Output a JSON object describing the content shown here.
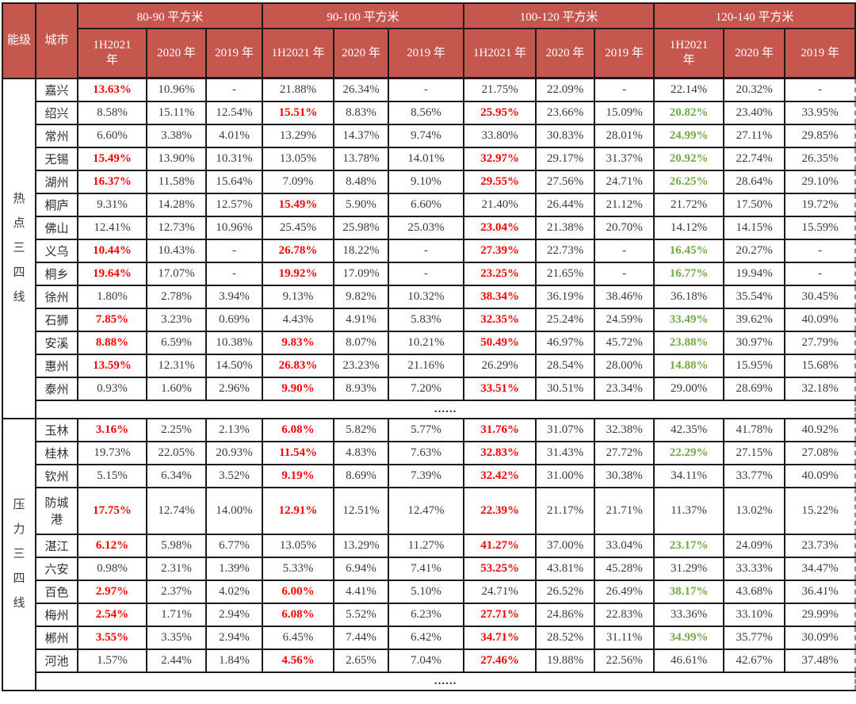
{
  "colors": {
    "header_bg": "#c5574f",
    "header_text": "#ffffff",
    "highlight_red": "#fe0000",
    "highlight_green": "#6fac47",
    "body_text": "#3a3a3a",
    "border": "#1b1b1b"
  },
  "chart_data": {
    "type": "table",
    "corner_headers": [
      "能级",
      "城市"
    ],
    "column_groups": [
      {
        "label": "80-90 平方米",
        "sub": [
          "1H2021\n年",
          "2020 年",
          "2019 年"
        ]
      },
      {
        "label": "90-100 平方米",
        "sub": [
          "1H2021 年",
          "2020 年",
          "2019 年"
        ]
      },
      {
        "label": "100-120 平方米",
        "sub": [
          "1H2021 年",
          "2020 年",
          "2019 年"
        ]
      },
      {
        "label": "120-140 平方米",
        "sub": [
          "1H2021\n年",
          "2020 年",
          "2019 年"
        ]
      }
    ],
    "sections": [
      {
        "label": "热点三四线",
        "ellipsis": "......",
        "rows": [
          {
            "city": "嘉兴",
            "values": [
              {
                "v": "13.63%",
                "c": "r"
              },
              "10.96%",
              "-",
              "21.88%",
              "26.34%",
              "-",
              "21.75%",
              "22.09%",
              "-",
              "22.14%",
              "20.32%",
              "-"
            ]
          },
          {
            "city": "绍兴",
            "values": [
              "8.58%",
              "15.11%",
              "12.54%",
              {
                "v": "15.51%",
                "c": "r"
              },
              "8.83%",
              "8.56%",
              {
                "v": "25.95%",
                "c": "r"
              },
              "23.66%",
              "15.09%",
              {
                "v": "20.82%",
                "c": "g"
              },
              "23.40%",
              "33.95%"
            ]
          },
          {
            "city": "常州",
            "values": [
              "6.60%",
              "3.38%",
              "4.01%",
              "13.29%",
              "14.37%",
              "9.74%",
              "33.80%",
              "30.83%",
              "28.01%",
              {
                "v": "24.99%",
                "c": "g"
              },
              "27.11%",
              "29.85%"
            ]
          },
          {
            "city": "无锡",
            "values": [
              {
                "v": "15.49%",
                "c": "r"
              },
              "13.90%",
              "10.31%",
              "13.05%",
              "13.78%",
              "14.01%",
              {
                "v": "32.97%",
                "c": "r"
              },
              "29.17%",
              "31.37%",
              {
                "v": "20.92%",
                "c": "g"
              },
              "22.74%",
              "26.35%"
            ]
          },
          {
            "city": "湖州",
            "values": [
              {
                "v": "16.37%",
                "c": "r"
              },
              "11.58%",
              "15.64%",
              "7.09%",
              "8.48%",
              "9.10%",
              {
                "v": "29.55%",
                "c": "r"
              },
              "27.56%",
              "24.71%",
              {
                "v": "26.25%",
                "c": "g"
              },
              "28.64%",
              "29.10%"
            ]
          },
          {
            "city": "桐庐",
            "values": [
              "9.31%",
              "14.28%",
              "12.57%",
              {
                "v": "15.49%",
                "c": "r"
              },
              "5.90%",
              "6.60%",
              "21.40%",
              "26.44%",
              "21.12%",
              "21.72%",
              "17.50%",
              "19.72%"
            ]
          },
          {
            "city": "佛山",
            "values": [
              "12.41%",
              "12.73%",
              "10.96%",
              "25.45%",
              "25.98%",
              "25.03%",
              {
                "v": "23.04%",
                "c": "r"
              },
              "21.38%",
              "20.70%",
              "14.12%",
              "14.15%",
              "15.59%"
            ]
          },
          {
            "city": "义乌",
            "values": [
              {
                "v": "10.44%",
                "c": "r"
              },
              "10.43%",
              "-",
              {
                "v": "26.78%",
                "c": "r"
              },
              "18.22%",
              "-",
              {
                "v": "27.39%",
                "c": "r"
              },
              "22.73%",
              "-",
              {
                "v": "16.45%",
                "c": "g"
              },
              "20.27%",
              "-"
            ]
          },
          {
            "city": "桐乡",
            "values": [
              {
                "v": "19.64%",
                "c": "r"
              },
              "17.07%",
              "-",
              {
                "v": "19.92%",
                "c": "r"
              },
              "17.09%",
              "-",
              {
                "v": "23.25%",
                "c": "r"
              },
              "21.65%",
              "-",
              {
                "v": "16.77%",
                "c": "g"
              },
              "19.94%",
              "-"
            ]
          },
          {
            "city": "徐州",
            "values": [
              "1.80%",
              "2.78%",
              "3.94%",
              "9.13%",
              "9.82%",
              "10.32%",
              {
                "v": "38.34%",
                "c": "r"
              },
              "36.19%",
              "38.46%",
              "36.18%",
              "35.54%",
              "30.45%"
            ]
          },
          {
            "city": "石狮",
            "values": [
              {
                "v": "7.85%",
                "c": "r"
              },
              "3.23%",
              "0.69%",
              "4.43%",
              "4.91%",
              "5.83%",
              {
                "v": "32.35%",
                "c": "r"
              },
              "25.24%",
              "24.59%",
              {
                "v": "33.49%",
                "c": "g"
              },
              "39.62%",
              "40.09%"
            ]
          },
          {
            "city": "安溪",
            "values": [
              {
                "v": "8.88%",
                "c": "r"
              },
              "6.59%",
              "10.38%",
              {
                "v": "9.83%",
                "c": "r"
              },
              "8.07%",
              "10.21%",
              {
                "v": "50.49%",
                "c": "r"
              },
              "46.97%",
              "45.72%",
              {
                "v": "23.88%",
                "c": "g"
              },
              "30.97%",
              "27.79%"
            ]
          },
          {
            "city": "惠州",
            "values": [
              {
                "v": "13.59%",
                "c": "r"
              },
              "12.31%",
              "14.50%",
              {
                "v": "26.83%",
                "c": "r"
              },
              "23.23%",
              "21.16%",
              "26.29%",
              "28.54%",
              "28.00%",
              {
                "v": "14.88%",
                "c": "g"
              },
              "15.95%",
              "15.68%"
            ]
          },
          {
            "city": "泰州",
            "values": [
              "0.93%",
              "1.60%",
              "2.96%",
              {
                "v": "9.90%",
                "c": "r"
              },
              "8.93%",
              "7.20%",
              {
                "v": "33.51%",
                "c": "r"
              },
              "30.51%",
              "23.34%",
              "29.00%",
              "28.69%",
              "32.18%"
            ]
          }
        ]
      },
      {
        "label": "压力三四线",
        "ellipsis": "......",
        "rows": [
          {
            "city": "玉林",
            "values": [
              {
                "v": "3.16%",
                "c": "r"
              },
              "2.25%",
              "2.13%",
              {
                "v": "6.08%",
                "c": "r"
              },
              "5.82%",
              "5.77%",
              {
                "v": "31.76%",
                "c": "r"
              },
              "31.07%",
              "32.38%",
              "42.35%",
              "41.78%",
              "40.92%"
            ]
          },
          {
            "city": "桂林",
            "values": [
              "19.73%",
              "22.05%",
              "20.93%",
              {
                "v": "11.54%",
                "c": "r"
              },
              "4.83%",
              "7.63%",
              {
                "v": "32.83%",
                "c": "r"
              },
              "31.43%",
              "27.72%",
              {
                "v": "22.29%",
                "c": "g"
              },
              "27.15%",
              "27.08%"
            ]
          },
          {
            "city": "钦州",
            "values": [
              "5.15%",
              "6.34%",
              "3.52%",
              {
                "v": "9.19%",
                "c": "r"
              },
              "8.69%",
              "7.39%",
              {
                "v": "32.42%",
                "c": "r"
              },
              "31.00%",
              "30.38%",
              "34.11%",
              "33.77%",
              "40.09%"
            ]
          },
          {
            "city": "防城港",
            "tall": true,
            "values": [
              {
                "v": "17.75%",
                "c": "r"
              },
              "12.74%",
              "14.00%",
              {
                "v": "12.91%",
                "c": "r"
              },
              "12.51%",
              "12.47%",
              {
                "v": "22.39%",
                "c": "r"
              },
              "21.17%",
              "21.71%",
              "11.37%",
              "13.02%",
              "15.22%"
            ]
          },
          {
            "city": "湛江",
            "values": [
              {
                "v": "6.12%",
                "c": "r"
              },
              "5.98%",
              "6.77%",
              "13.05%",
              "13.29%",
              "11.27%",
              {
                "v": "41.27%",
                "c": "r"
              },
              "37.00%",
              "33.04%",
              {
                "v": "23.17%",
                "c": "g"
              },
              "24.09%",
              "23.73%"
            ]
          },
          {
            "city": "六安",
            "values": [
              "0.98%",
              "2.31%",
              "1.39%",
              "5.33%",
              "6.94%",
              "7.41%",
              {
                "v": "53.25%",
                "c": "r"
              },
              "43.81%",
              "45.28%",
              "31.29%",
              "33.33%",
              "34.47%"
            ]
          },
          {
            "city": "百色",
            "values": [
              {
                "v": "2.97%",
                "c": "r"
              },
              "2.37%",
              "4.02%",
              {
                "v": "6.00%",
                "c": "r"
              },
              "4.41%",
              "5.10%",
              "24.71%",
              "26.52%",
              "26.49%",
              {
                "v": "38.17%",
                "c": "g"
              },
              "43.68%",
              "36.41%"
            ]
          },
          {
            "city": "梅州",
            "values": [
              {
                "v": "2.54%",
                "c": "r"
              },
              "1.71%",
              "2.94%",
              {
                "v": "6.08%",
                "c": "r"
              },
              "5.52%",
              "6.23%",
              {
                "v": "27.71%",
                "c": "r"
              },
              "24.86%",
              "22.83%",
              "33.36%",
              "33.10%",
              "29.99%"
            ]
          },
          {
            "city": "郴州",
            "values": [
              {
                "v": "3.55%",
                "c": "r"
              },
              "3.35%",
              "2.94%",
              "6.45%",
              "7.44%",
              "6.42%",
              {
                "v": "34.71%",
                "c": "r"
              },
              "28.52%",
              "31.11%",
              {
                "v": "34.99%",
                "c": "g"
              },
              "35.77%",
              "30.09%"
            ]
          },
          {
            "city": "河池",
            "values": [
              "1.57%",
              "2.44%",
              "1.84%",
              {
                "v": "4.56%",
                "c": "r"
              },
              "2.65%",
              "7.04%",
              {
                "v": "27.46%",
                "c": "r"
              },
              "19.88%",
              "22.56%",
              "46.61%",
              "42.67%",
              "37.48%"
            ]
          }
        ]
      }
    ]
  }
}
